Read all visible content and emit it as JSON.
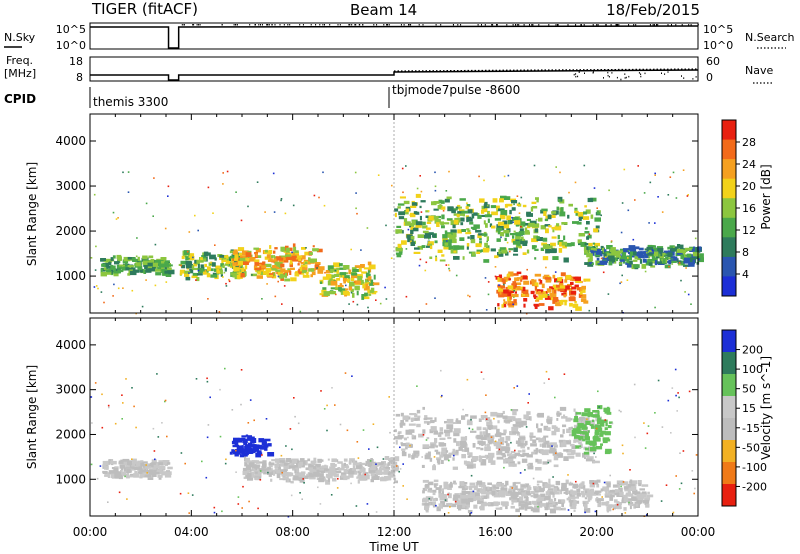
{
  "header": {
    "title": "TIGER (fitACF)",
    "beam": "Beam 14",
    "date": "18/Feb/2015"
  },
  "nsky_panel": {
    "left_label": "N.Sky",
    "left_ticks": [
      "10^5",
      "10^0"
    ],
    "right_label": "N.Search",
    "right_ticks": [
      "10^5",
      "10^0"
    ]
  },
  "freq_panel": {
    "left_label_1": "Freq.",
    "left_label_2": "[MHz]",
    "left_ticks": [
      "18",
      "8"
    ],
    "right_label": "Nave",
    "right_ticks": [
      "60",
      "0"
    ]
  },
  "cpid": {
    "label": "CPID",
    "modes": [
      "themis 3300",
      "tbjmode7pulse -8600"
    ]
  },
  "colors": {
    "power": [
      "#1c2fd6",
      "#2a56b0",
      "#2e7b5c",
      "#4aa84a",
      "#8cc63f",
      "#f2d21a",
      "#f5a020",
      "#f26a1a",
      "#e82010"
    ],
    "velocity": [
      "#1c2fd6",
      "#2e7b5c",
      "#66c25a",
      "#c8c8c8",
      "#bdbdbd",
      "#f2b124",
      "#f07a18",
      "#e82010"
    ]
  },
  "chart_data": [
    {
      "type": "heatmap",
      "quantity": "power",
      "ylabel": "Slant Range [km]",
      "ylim": [
        180,
        4600
      ],
      "yticks": [
        1000,
        2000,
        3000,
        4000
      ],
      "xlim": [
        0,
        24
      ],
      "xticks": [
        "00:00",
        "04:00",
        "08:00",
        "12:00",
        "16:00",
        "20:00",
        "00:00"
      ],
      "colorbar": {
        "label": "Power [dB]",
        "range": [
          0,
          32
        ],
        "ticks": [
          "4",
          "8",
          "12",
          "16",
          "20",
          "24",
          "28"
        ]
      },
      "data_gap_hours": [
        3.1,
        3.5
      ],
      "mode_change_hour": 12.0,
      "echo_regions": [
        {
          "t": [
            0.4,
            3.1
          ],
          "r": [
            1000,
            1450
          ],
          "level": "8-16"
        },
        {
          "t": [
            3.5,
            6.0
          ],
          "r": [
            900,
            1600
          ],
          "level": "8-20"
        },
        {
          "t": [
            5.5,
            9.0
          ],
          "r": [
            900,
            1700
          ],
          "level": "16-28"
        },
        {
          "t": [
            9.0,
            11.2
          ],
          "r": [
            500,
            1300
          ],
          "level": "12-24"
        },
        {
          "t": [
            12.0,
            20.0
          ],
          "r": [
            1300,
            2800
          ],
          "level": "8-20"
        },
        {
          "t": [
            16.0,
            19.5
          ],
          "r": [
            250,
            1100
          ],
          "level": "20-32"
        },
        {
          "t": [
            19.5,
            24.0
          ],
          "r": [
            1200,
            1700
          ],
          "level": "4-16"
        }
      ]
    },
    {
      "type": "heatmap",
      "quantity": "velocity",
      "ylabel": "Slant Range [km]",
      "ylim": [
        180,
        4600
      ],
      "yticks": [
        1000,
        2000,
        3000,
        4000
      ],
      "xlabel": "Time UT",
      "xlim": [
        0,
        24
      ],
      "xticks": [
        "00:00",
        "04:00",
        "08:00",
        "12:00",
        "16:00",
        "20:00",
        "00:00"
      ],
      "colorbar": {
        "label": "Velocity [m s^-1]",
        "range": [
          -250,
          250
        ],
        "ticks": [
          "200",
          "100",
          "50",
          "15",
          "-15",
          "-50",
          "-100",
          "-200"
        ]
      },
      "data_gap_hours": [
        3.1,
        3.5
      ],
      "mode_change_hour": 12.0,
      "echo_regions": [
        {
          "t": [
            0.4,
            3.1
          ],
          "r": [
            1000,
            1450
          ],
          "level": "ground scatter"
        },
        {
          "t": [
            5.5,
            7.0
          ],
          "r": [
            1500,
            2000
          ],
          "level": "200"
        },
        {
          "t": [
            6.0,
            12.0
          ],
          "r": [
            900,
            1500
          ],
          "level": "ground scatter"
        },
        {
          "t": [
            12.0,
            20.0
          ],
          "r": [
            1200,
            2600
          ],
          "level": "ground scatter"
        },
        {
          "t": [
            19.0,
            20.5
          ],
          "r": [
            1500,
            2700
          ],
          "level": "50"
        },
        {
          "t": [
            13.0,
            22.0
          ],
          "r": [
            250,
            1000
          ],
          "level": "ground scatter"
        }
      ]
    }
  ]
}
